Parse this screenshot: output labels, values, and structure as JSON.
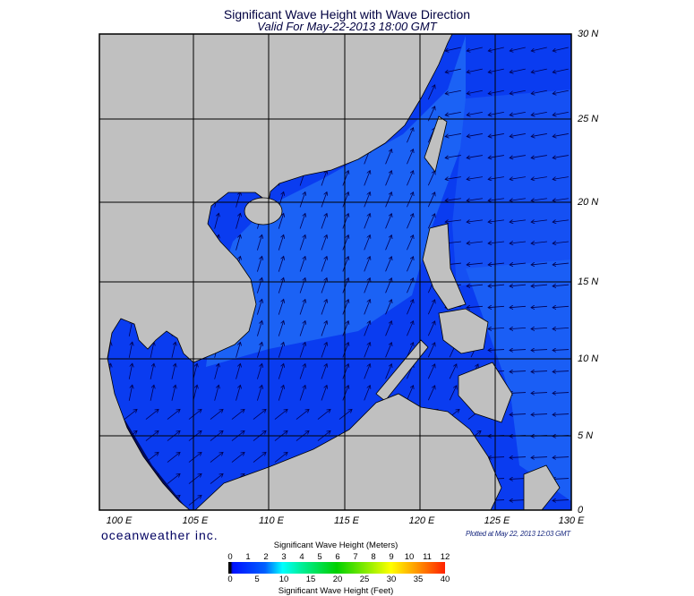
{
  "header": {
    "title": "Significant Wave Height with Wave Direction",
    "subtitle": "Valid For May-22-2013 18:00 GMT"
  },
  "map": {
    "lat_labels": [
      "30 N",
      "25 N",
      "20 N",
      "15 N",
      "10 N",
      "5 N",
      "0"
    ],
    "lon_labels": [
      "100 E",
      "105 E",
      "110 E",
      "115 E",
      "120 E",
      "125 E",
      "130 E"
    ],
    "colors": {
      "ocean": "#0a3cf0",
      "ocean_light": "#1f6cf6",
      "land": "#c0c0c0",
      "grid": "#000000",
      "arrow": "#000050"
    }
  },
  "footer": {
    "brand": "oceanweather inc.",
    "plotted": "Plotted at May 22, 2013 12:03 GMT"
  },
  "legend": {
    "title_meters": "Significant Wave Height (Meters)",
    "ticks_meters": [
      "0",
      "1",
      "2",
      "3",
      "4",
      "5",
      "6",
      "7",
      "8",
      "9",
      "10",
      "11",
      "12"
    ],
    "title_feet": "Significant Wave Height (Feet)",
    "ticks_feet": [
      "0",
      "5",
      "10",
      "15",
      "20",
      "25",
      "30",
      "35",
      "40"
    ]
  }
}
